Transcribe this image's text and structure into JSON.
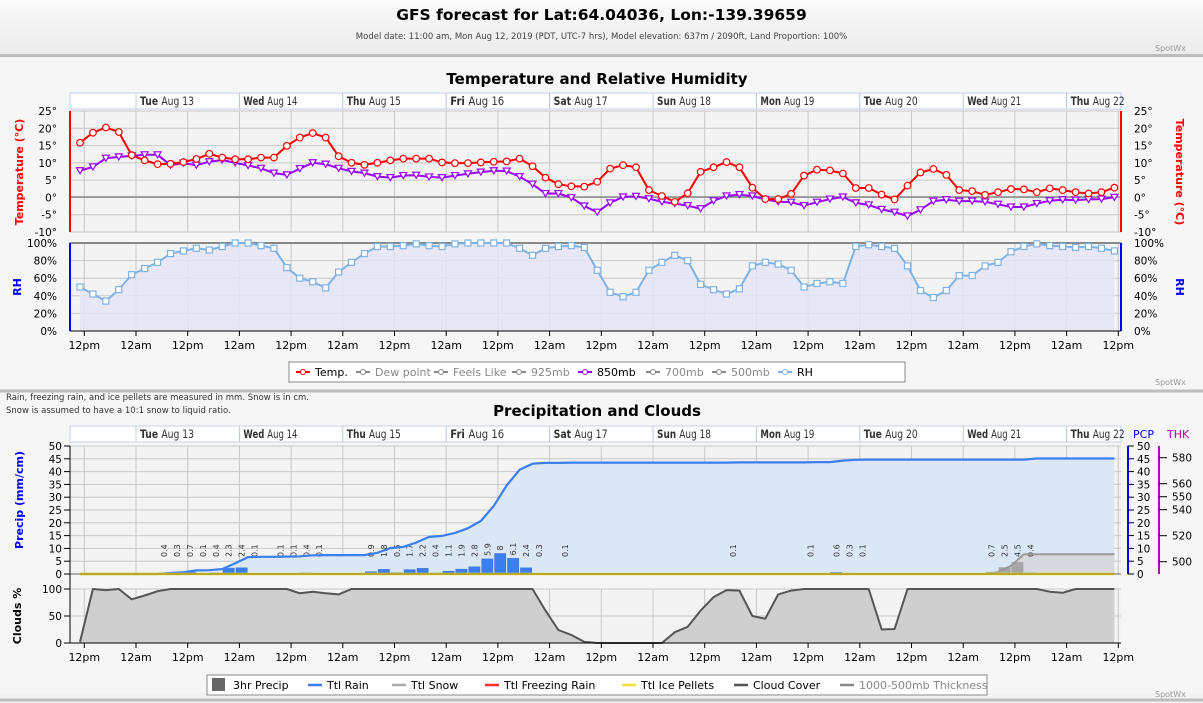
{
  "header": {
    "title": "GFS forecast for Lat:64.04036, Lon:-139.39659",
    "subtitle": "Model date: 11:00 am, Mon Aug 12, 2019 (PDT, UTC-7 hrs), Model elevation: 637m / 2090ft, Land Proportion: 100%",
    "brand": "SpotWx"
  },
  "days": [
    {
      "dow": "Tue",
      "date": "Aug 13"
    },
    {
      "dow": "Wed",
      "date": "Aug 14"
    },
    {
      "dow": "Thu",
      "date": "Aug 15"
    },
    {
      "dow": "Fri",
      "date": "Aug 16"
    },
    {
      "dow": "Sat",
      "date": "Aug 17"
    },
    {
      "dow": "Sun",
      "date": "Aug 18"
    },
    {
      "dow": "Mon",
      "date": "Aug 19"
    },
    {
      "dow": "Tue",
      "date": "Aug 20"
    },
    {
      "dow": "Wed",
      "date": "Aug 21"
    },
    {
      "dow": "Thu",
      "date": "Aug 22"
    }
  ],
  "x_tick_labels": [
    "12pm",
    "12am",
    "12pm",
    "12am",
    "12pm",
    "12am",
    "12pm",
    "12am",
    "12pm",
    "12am",
    "12pm",
    "12am",
    "12pm",
    "12am",
    "12pm",
    "12am",
    "12pm",
    "12am",
    "12pm",
    "12am",
    "12pm"
  ],
  "notes": {
    "line1": "Rain, freezing rain, and ice pellets are measured in mm. Snow is in cm.",
    "line2": "Snow is assumed to have a 10:1 snow to liquid ratio."
  },
  "colors": {
    "temp": "#ff0000",
    "p850": "#9900ff",
    "rh": "#7fb2e5",
    "rain": "#3a7ef0",
    "snow": "#999999",
    "frz": "#ff3333",
    "ice": "#f5e033",
    "cloud": "#555555",
    "thk": "#888888",
    "pcp_axis": "#0000ff",
    "thk_axis": "#b000b0"
  },
  "chart_data": [
    {
      "type": "line",
      "title": "Temperature and Relative Humidity",
      "x_start": "Mon Aug 12 11am",
      "step_hours": 3,
      "y_left_label": "Temperature (°C)",
      "y_right_label": "Temperature (°C)",
      "rh_label": "RH",
      "temp_ticks": [
        "25°",
        "20°",
        "15°",
        "10°",
        "5°",
        "0°",
        "-5°",
        "-10°"
      ],
      "rh_ticks": [
        "100%",
        "80%",
        "60%",
        "40%",
        "20%",
        "0%"
      ],
      "ylim_temp": [
        -10,
        25
      ],
      "ylim_rh": [
        0,
        100
      ],
      "legend": [
        "Temp.",
        "Dew point",
        "Feels Like",
        "925mb",
        "850mb",
        "700mb",
        "500mb",
        "RH"
      ],
      "series": [
        {
          "name": "Temp.",
          "values": [
            15.7,
            18.6,
            20.1,
            18.8,
            12.1,
            10.6,
            9.5,
            9.6,
            10.1,
            11.0,
            12.5,
            11.4,
            10.9,
            10.9,
            11.4,
            11.4,
            14.8,
            17.2,
            18.5,
            17.2,
            11.8,
            9.9,
            9.3,
            9.9,
            10.6,
            11.1,
            11.1,
            11.1,
            10.0,
            9.8,
            9.8,
            10.0,
            10.2,
            10.3,
            11.1,
            8.9,
            5.6,
            3.7,
            3.1,
            3.0,
            4.4,
            8.2,
            9.2,
            8.6,
            2.0,
            0.3,
            -1.4,
            1.1,
            7.3,
            8.6,
            10.1,
            8.6,
            2.7,
            -0.6,
            -0.6,
            0.9,
            6.2,
            7.9,
            7.7,
            6.8,
            2.6,
            2.6,
            0.7,
            -0.7,
            3.3,
            7.1,
            8.1,
            6.4,
            2.0,
            1.7,
            0.6,
            1.4,
            2.3,
            2.2,
            1.4,
            2.5,
            2.0,
            1.4,
            1.0,
            1.4,
            2.7
          ]
        },
        {
          "name": "850mb",
          "values": [
            7.6,
            8.7,
            11.2,
            11.6,
            11.9,
            12.2,
            12.2,
            9.2,
            9.8,
            9.2,
            10.2,
            10.7,
            9.9,
            9.1,
            8.3,
            6.9,
            6.4,
            8.2,
            9.9,
            9.5,
            8.3,
            7.4,
            6.9,
            5.9,
            5.6,
            6.2,
            6.3,
            5.8,
            5.6,
            6.2,
            6.7,
            7.2,
            7.6,
            7.5,
            5.9,
            3.7,
            1.0,
            1.0,
            -0.2,
            -2.6,
            -4.4,
            -1.7,
            0.0,
            0.2,
            -0.5,
            -1.4,
            -1.9,
            -2.5,
            -3.4,
            -1.1,
            0.3,
            0.7,
            0.3,
            -0.7,
            -1.4,
            -1.5,
            -2.5,
            -1.5,
            -0.6,
            0.0,
            -1.7,
            -2.3,
            -3.6,
            -4.4,
            -5.5,
            -3.7,
            -1.2,
            -0.8,
            -1.2,
            -1.2,
            -1.4,
            -2.1,
            -2.9,
            -2.9,
            -1.9,
            -1.1,
            -0.8,
            -0.9,
            -0.7,
            -0.6,
            -0.1
          ]
        },
        {
          "name": "RH",
          "values": [
            50,
            42,
            34,
            47,
            64,
            71,
            78,
            88,
            91,
            94,
            92,
            96,
            100,
            100,
            97,
            94,
            72,
            60,
            56,
            49,
            67,
            78,
            88,
            96,
            96,
            97,
            99,
            97,
            96,
            99,
            100,
            100,
            100,
            100,
            94,
            86,
            94,
            96,
            97,
            95,
            69,
            44,
            39,
            44,
            69,
            78,
            86,
            80,
            53,
            47,
            42,
            48,
            74,
            78,
            76,
            69,
            50,
            54,
            56,
            54,
            96,
            98,
            96,
            94,
            74,
            46,
            38,
            46,
            63,
            63,
            74,
            78,
            90,
            96,
            99,
            97,
            96,
            95,
            96,
            94,
            91
          ]
        }
      ]
    },
    {
      "type": "bar",
      "title": "Precipitation and Clouds",
      "x_start": "Mon Aug 12 11am",
      "step_hours": 3,
      "y_left_label": "Precip (mm/cm)",
      "cloud_label": "Clouds %",
      "pcp_header": "PCP",
      "thk_header": "THK",
      "pcp_ticks": [
        "50",
        "45",
        "40",
        "35",
        "30",
        "25",
        "20",
        "15",
        "10",
        "5",
        "0"
      ],
      "thk_ticks": [
        "580",
        "560",
        "550",
        "540",
        "520",
        "500"
      ],
      "thk_tick_values": [
        580,
        560,
        550,
        540,
        520,
        500
      ],
      "cloud_ticks": [
        "100",
        "50",
        "0"
      ],
      "ylim_precip": [
        0,
        50
      ],
      "ylim_cloud": [
        0,
        100
      ],
      "legend": [
        "3hr Precip",
        "Ttl Rain",
        "Ttl Snow",
        "Ttl Freezing Rain",
        "Ttl Ice Pellets",
        "Cloud Cover",
        "1000-500mb Thickness"
      ],
      "precip_3hr": [
        {
          "period": 6,
          "value": 0.4,
          "label": "0.4",
          "kind": "rain"
        },
        {
          "period": 7,
          "value": 0.3,
          "label": "0.3",
          "kind": "rain"
        },
        {
          "period": 8,
          "value": 0.7,
          "label": "0.7",
          "kind": "rain"
        },
        {
          "period": 9,
          "value": 0.1,
          "label": "0.1",
          "kind": "rain"
        },
        {
          "period": 10,
          "value": 0.4,
          "label": "0.4",
          "kind": "rain"
        },
        {
          "period": 11,
          "value": 2.3,
          "label": "2.3",
          "kind": "rain"
        },
        {
          "period": 12,
          "value": 2.4,
          "label": "2.4",
          "kind": "rain"
        },
        {
          "period": 13,
          "value": 0.1,
          "label": "0.1",
          "kind": "rain"
        },
        {
          "period": 15,
          "value": 0.1,
          "label": "0.1",
          "kind": "rain"
        },
        {
          "period": 16,
          "value": 0.1,
          "label": "0.1",
          "kind": "rain"
        },
        {
          "period": 17,
          "value": 0.4,
          "label": "0.4",
          "kind": "rain"
        },
        {
          "period": 18,
          "value": 0.1,
          "label": "0.1",
          "kind": "rain"
        },
        {
          "period": 22,
          "value": 0.9,
          "label": "0.9",
          "kind": "rain"
        },
        {
          "period": 23,
          "value": 1.8,
          "label": "1.8",
          "kind": "rain"
        },
        {
          "period": 24,
          "value": 0.5,
          "label": "0.5",
          "kind": "rain"
        },
        {
          "period": 25,
          "value": 1.7,
          "label": "1.7",
          "kind": "rain"
        },
        {
          "period": 26,
          "value": 2.2,
          "label": "2.2",
          "kind": "rain"
        },
        {
          "period": 27,
          "value": 0.4,
          "label": "0.4",
          "kind": "rain"
        },
        {
          "period": 28,
          "value": 1.1,
          "label": "1.1",
          "kind": "rain"
        },
        {
          "period": 29,
          "value": 1.9,
          "label": "1.9",
          "kind": "rain"
        },
        {
          "period": 30,
          "value": 2.8,
          "label": "2.8",
          "kind": "rain"
        },
        {
          "period": 31,
          "value": 5.9,
          "label": "5.9",
          "kind": "rain"
        },
        {
          "period": 32,
          "value": 8.0,
          "label": "8",
          "kind": "rain"
        },
        {
          "period": 33,
          "value": 6.1,
          "label": "6.1",
          "kind": "rain"
        },
        {
          "period": 34,
          "value": 2.4,
          "label": "2.4",
          "kind": "rain"
        },
        {
          "period": 35,
          "value": 0.3,
          "label": "0.3",
          "kind": "rain"
        },
        {
          "period": 37,
          "value": 0.1,
          "label": "0.1",
          "kind": "rain"
        },
        {
          "period": 50,
          "value": 0.1,
          "label": "0.1",
          "kind": "rain"
        },
        {
          "period": 56,
          "value": 0.1,
          "label": "0.1",
          "kind": "rain"
        },
        {
          "period": 58,
          "value": 0.6,
          "label": "0.6",
          "kind": "rain"
        },
        {
          "period": 59,
          "value": 0.3,
          "label": "0.3",
          "kind": "rain"
        },
        {
          "period": 60,
          "value": 0.1,
          "label": "0.1",
          "kind": "rain"
        },
        {
          "period": 70,
          "value": 0.7,
          "label": "0.7",
          "kind": "snow"
        },
        {
          "period": 71,
          "value": 2.5,
          "label": "2.5",
          "kind": "snow"
        },
        {
          "period": 72,
          "value": 4.5,
          "label": "4.5",
          "kind": "snow"
        },
        {
          "period": 73,
          "value": 0.4,
          "label": "0.4",
          "kind": "rain"
        }
      ],
      "cloud_cover": [
        2,
        100,
        98,
        100,
        81,
        88,
        96,
        100,
        100,
        100,
        100,
        100,
        100,
        100,
        100,
        100,
        100,
        92,
        95,
        92,
        90,
        100,
        100,
        100,
        100,
        100,
        100,
        100,
        100,
        100,
        100,
        100,
        100,
        100,
        100,
        100,
        60,
        24,
        15,
        2,
        0,
        0,
        0,
        0,
        0,
        0,
        20,
        30,
        60,
        85,
        98,
        97,
        50,
        45,
        90,
        97,
        100,
        100,
        100,
        100,
        100,
        100,
        25,
        26,
        100,
        100,
        100,
        100,
        100,
        100,
        100,
        100,
        100,
        100,
        100,
        95,
        93,
        100,
        100,
        100,
        100
      ]
    }
  ]
}
